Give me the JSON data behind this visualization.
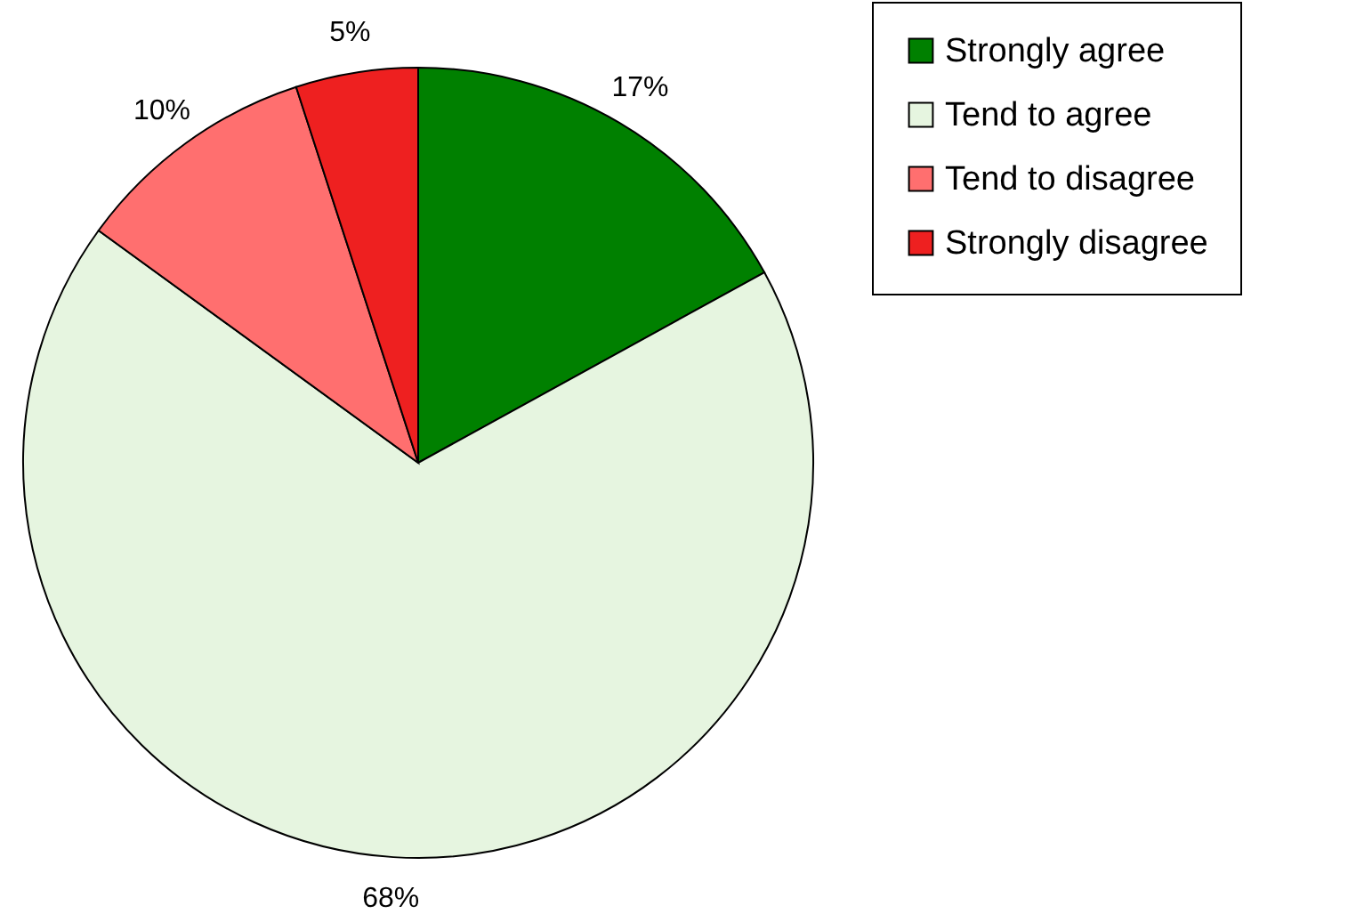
{
  "chart_data": {
    "type": "pie",
    "categories": [
      "Strongly agree",
      "Tend to agree",
      "Tend to disagree",
      "Strongly disagree"
    ],
    "values": [
      17,
      68,
      10,
      5
    ],
    "colors": [
      "#008000",
      "#e6f5e0",
      "#ff6f6f",
      "#ee2020"
    ],
    "value_labels": [
      "17%",
      "68%",
      "10%",
      "5%"
    ],
    "legend": "right"
  }
}
